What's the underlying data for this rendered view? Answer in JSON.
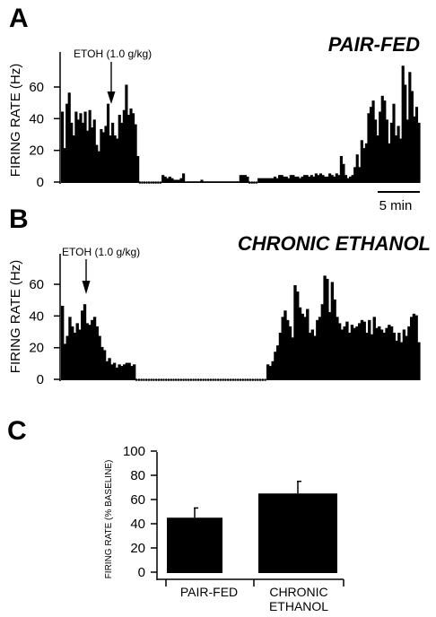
{
  "colors": {
    "ink": "#000000",
    "background": "#ffffff"
  },
  "panels": {
    "a": {
      "letter": "A",
      "condition": "PAIR-FED",
      "ylabel": "FIRING RATE (Hz)",
      "yticks": [
        "0",
        "20",
        "40",
        "60"
      ],
      "annotation": "ETOH (1.0 g/kg)",
      "scale_bar_label": "5 min"
    },
    "b": {
      "letter": "B",
      "condition": "CHRONIC ETHANOL",
      "ylabel": "FIRING RATE (Hz)",
      "yticks": [
        "0",
        "20",
        "40",
        "60"
      ],
      "annotation": "ETOH (1.0 g/kg)"
    },
    "c": {
      "letter": "C",
      "ylabel": "FIRING RATE (% BASELINE)",
      "yticks": [
        "0",
        "20",
        "40",
        "60",
        "80",
        "100"
      ],
      "categories": [
        [
          "PAIR-FED"
        ],
        [
          "CHRONIC",
          "ETHANOL"
        ]
      ]
    }
  },
  "chart_data": [
    {
      "type": "bar",
      "title": "PAIR-FED",
      "ylabel": "FIRING RATE (Hz)",
      "ylim": [
        0,
        75
      ],
      "annotations": [
        "ETOH (1.0 g/kg)",
        "5 min"
      ],
      "values": [
        45,
        22,
        50,
        57,
        38,
        30,
        45,
        40,
        44,
        38,
        45,
        33,
        46,
        35,
        40,
        24,
        20,
        34,
        32,
        36,
        50,
        30,
        38,
        30,
        28,
        43,
        38,
        46,
        62,
        43,
        47,
        44,
        37,
        17,
        0,
        0,
        0,
        0,
        0,
        0,
        0,
        0,
        0,
        0,
        5,
        4,
        3,
        4,
        3,
        2,
        2,
        2,
        3,
        6,
        1,
        1,
        1,
        1,
        1,
        1,
        1,
        2,
        1,
        1,
        1,
        1,
        1,
        1,
        1,
        1,
        1,
        1,
        1,
        1,
        1,
        1,
        1,
        1,
        5,
        5,
        5,
        4,
        0,
        0,
        0,
        0,
        3,
        3,
        3,
        3,
        3,
        3,
        3,
        4,
        3,
        5,
        5,
        4,
        4,
        3,
        5,
        5,
        4,
        4,
        3,
        4,
        5,
        5,
        4,
        5,
        4,
        6,
        5,
        6,
        5,
        4,
        4,
        6,
        5,
        4,
        6,
        5,
        17,
        12,
        5,
        3,
        4,
        5,
        10,
        18,
        10,
        27,
        22,
        25,
        44,
        48,
        52,
        40,
        30,
        45,
        55,
        52,
        40,
        25,
        38,
        50,
        30,
        36,
        28,
        74,
        62,
        40,
        70,
        58,
        42,
        48,
        38
      ],
      "zero_markers": [
        34,
        35,
        36,
        37,
        38,
        39,
        40,
        41,
        42,
        43,
        82,
        83,
        84,
        85
      ]
    },
    {
      "type": "bar",
      "title": "CHRONIC ETHANOL",
      "ylabel": "FIRING RATE (Hz)",
      "ylim": [
        0,
        75
      ],
      "annotations": [
        "ETOH (1.0 g/kg)"
      ],
      "values": [
        47,
        23,
        28,
        40,
        34,
        30,
        36,
        32,
        44,
        48,
        36,
        35,
        38,
        40,
        34,
        28,
        21,
        19,
        12,
        14,
        10,
        11,
        8,
        10,
        9,
        10,
        11,
        11,
        9,
        10,
        0,
        0,
        0,
        0,
        0,
        0,
        0,
        0,
        0,
        0,
        0,
        0,
        0,
        0,
        0,
        0,
        0,
        0,
        0,
        0,
        0,
        0,
        0,
        0,
        0,
        0,
        0,
        0,
        0,
        0,
        0,
        0,
        0,
        0,
        0,
        0,
        0,
        0,
        0,
        0,
        0,
        0,
        0,
        0,
        0,
        0,
        0,
        0,
        0,
        0,
        0,
        0,
        0,
        10,
        9,
        12,
        18,
        22,
        30,
        40,
        44,
        38,
        34,
        27,
        60,
        56,
        46,
        42,
        40,
        45,
        30,
        32,
        28,
        38,
        40,
        48,
        66,
        64,
        43,
        62,
        51,
        40,
        36,
        32,
        34,
        37,
        30,
        35,
        33,
        34,
        36,
        38,
        37,
        30,
        38,
        29,
        40,
        33,
        34,
        32,
        30,
        33,
        35,
        34,
        30,
        25,
        30,
        24,
        32,
        28,
        34,
        40,
        42,
        41,
        24
      ],
      "zero_markers": [
        30,
        31,
        32,
        33,
        34,
        35,
        36,
        37,
        38,
        39,
        40,
        41,
        42,
        43,
        44,
        45,
        46,
        47,
        48,
        49,
        50,
        51,
        52,
        53,
        54,
        55,
        56,
        57,
        58,
        59,
        60,
        61,
        62,
        63,
        64,
        65,
        66,
        67,
        68,
        69,
        70,
        71,
        72,
        73,
        74,
        75,
        76,
        77,
        78,
        79,
        80,
        81,
        82
      ]
    },
    {
      "type": "bar",
      "ylabel": "FIRING RATE (% BASELINE)",
      "categories": [
        "PAIR-FED",
        "CHRONIC ETHANOL"
      ],
      "values": [
        45,
        65
      ],
      "error": [
        8,
        10
      ],
      "ylim": [
        0,
        100
      ]
    }
  ]
}
